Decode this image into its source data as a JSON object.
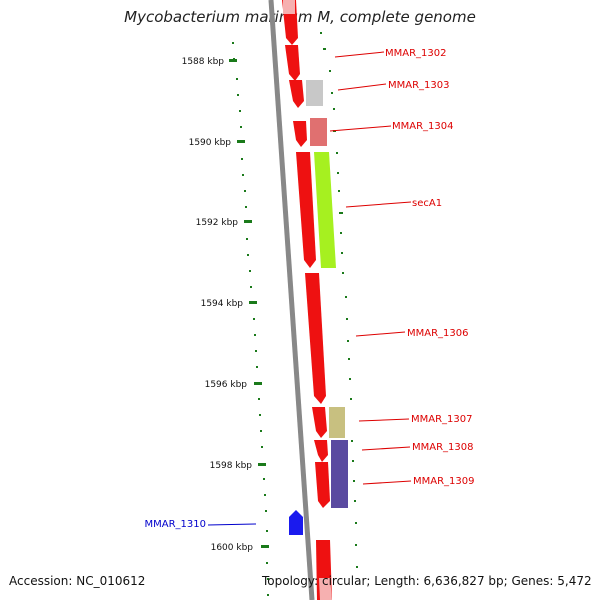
{
  "title": "Mycobacterium marinum M, complete genome",
  "accession": "Accession: NC_010612",
  "topology": "Topology: circular; Length: 6,636,827 bp; Genes: 5,472",
  "ticks": [
    "1588 kbp",
    "1590 kbp",
    "1592 kbp",
    "1594 kbp",
    "1596 kbp",
    "1598 kbp",
    "1600 kbp"
  ],
  "gene_labels": [
    {
      "name": "MMAR_1302",
      "color": "#dd0000"
    },
    {
      "name": "MMAR_1303",
      "color": "#dd0000"
    },
    {
      "name": "MMAR_1304",
      "color": "#dd0000"
    },
    {
      "name": "secA1",
      "color": "#dd0000"
    },
    {
      "name": "MMAR_1306",
      "color": "#dd0000"
    },
    {
      "name": "MMAR_1307",
      "color": "#dd0000"
    },
    {
      "name": "MMAR_1308",
      "color": "#dd0000"
    },
    {
      "name": "MMAR_1309",
      "color": "#dd0000"
    },
    {
      "name": "MMAR_1310",
      "color": "#0000cc"
    }
  ],
  "colors": {
    "cds_forward": "#ee1111",
    "cds_reverse": "#1a1aee",
    "backbone": "#888888",
    "tick": "#1a7a1a",
    "MMAR_1303": "#c8c8c8",
    "MMAR_1304": "#e07070",
    "secA1": "#a6f020",
    "MMAR_1307": "#c8c080",
    "MMAR_1308": "#5a4aa0",
    "MMAR_1309": "#5a4aa0"
  }
}
